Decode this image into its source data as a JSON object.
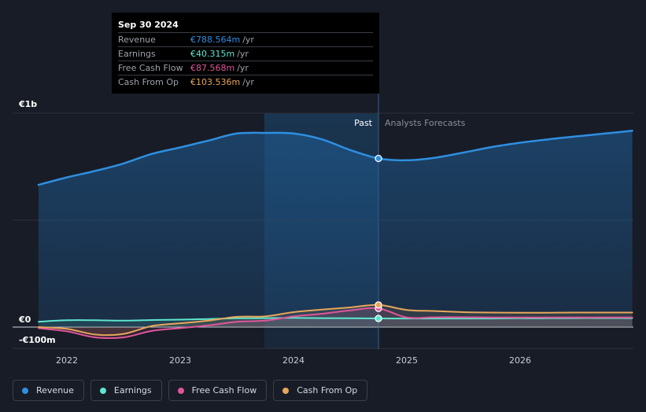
{
  "tooltip": {
    "date": "Sep 30 2024",
    "rows": [
      {
        "label": "Revenue",
        "value": "€788.564m",
        "unit": "/yr",
        "color": "#2e8fe0"
      },
      {
        "label": "Earnings",
        "value": "€40.315m",
        "unit": "/yr",
        "color": "#5ee6cf"
      },
      {
        "label": "Free Cash Flow",
        "value": "€87.568m",
        "unit": "/yr",
        "color": "#e0559a"
      },
      {
        "label": "Cash From Op",
        "value": "€103.536m",
        "unit": "/yr",
        "color": "#e8a65a"
      }
    ]
  },
  "legend": [
    {
      "label": "Revenue",
      "color": "#2e8fe0"
    },
    {
      "label": "Earnings",
      "color": "#5ee6cf"
    },
    {
      "label": "Free Cash Flow",
      "color": "#e0559a"
    },
    {
      "label": "Cash From Op",
      "color": "#e8a65a"
    }
  ],
  "chart_data": {
    "type": "line",
    "title": "",
    "xlabel": "",
    "ylabel": "",
    "y_tick_labels": [
      "€1b",
      "€0",
      "-€100m"
    ],
    "x_tick_labels": [
      "2022",
      "2023",
      "2024",
      "2025",
      "2026"
    ],
    "xlim": [
      2021.75,
      2026.99
    ],
    "ylim": [
      -100,
      1000
    ],
    "divider_x": 2024.75,
    "past_label": "Past",
    "forecast_label": "Analysts Forecasts",
    "series": [
      {
        "name": "Revenue",
        "color": "#2e8fe0",
        "points": [
          [
            2021.75,
            665
          ],
          [
            2022.0,
            700
          ],
          [
            2022.25,
            730
          ],
          [
            2022.5,
            765
          ],
          [
            2022.75,
            810
          ],
          [
            2023.0,
            840
          ],
          [
            2023.25,
            872
          ],
          [
            2023.5,
            905
          ],
          [
            2023.75,
            908
          ],
          [
            2024.0,
            905
          ],
          [
            2024.25,
            878
          ],
          [
            2024.5,
            828
          ],
          [
            2024.75,
            788.564
          ],
          [
            2025.0,
            780
          ],
          [
            2025.25,
            792
          ],
          [
            2025.5,
            816
          ],
          [
            2025.75,
            842
          ],
          [
            2026.0,
            862
          ],
          [
            2026.25,
            878
          ],
          [
            2026.5,
            892
          ],
          [
            2026.75,
            905
          ],
          [
            2026.99,
            918
          ]
        ]
      },
      {
        "name": "Earnings",
        "color": "#5ee6cf",
        "points": [
          [
            2021.75,
            25
          ],
          [
            2022.0,
            32
          ],
          [
            2022.25,
            32
          ],
          [
            2022.5,
            30
          ],
          [
            2022.75,
            33
          ],
          [
            2023.0,
            35
          ],
          [
            2023.25,
            38
          ],
          [
            2023.5,
            41
          ],
          [
            2023.75,
            42
          ],
          [
            2024.0,
            43
          ],
          [
            2024.25,
            42
          ],
          [
            2024.5,
            41
          ],
          [
            2024.75,
            40.315
          ],
          [
            2025.0,
            40
          ],
          [
            2025.25,
            40
          ],
          [
            2025.5,
            40
          ],
          [
            2025.75,
            40
          ],
          [
            2026.0,
            41
          ],
          [
            2026.25,
            41
          ],
          [
            2026.5,
            42
          ],
          [
            2026.75,
            42
          ],
          [
            2026.99,
            42
          ]
        ]
      },
      {
        "name": "Free Cash Flow",
        "color": "#e0559a",
        "points": [
          [
            2021.75,
            -5
          ],
          [
            2022.0,
            -20
          ],
          [
            2022.25,
            -48
          ],
          [
            2022.5,
            -48
          ],
          [
            2022.75,
            -18
          ],
          [
            2023.0,
            -5
          ],
          [
            2023.25,
            8
          ],
          [
            2023.5,
            25
          ],
          [
            2023.75,
            30
          ],
          [
            2024.0,
            50
          ],
          [
            2024.25,
            62
          ],
          [
            2024.5,
            78
          ],
          [
            2024.75,
            87.568
          ],
          [
            2025.0,
            45
          ],
          [
            2025.25,
            46
          ],
          [
            2025.5,
            46
          ],
          [
            2025.75,
            45
          ],
          [
            2026.0,
            45
          ],
          [
            2026.25,
            45
          ],
          [
            2026.5,
            45
          ],
          [
            2026.75,
            45
          ],
          [
            2026.99,
            45
          ]
        ]
      },
      {
        "name": "Cash From Op",
        "color": "#e8a65a",
        "points": [
          [
            2021.75,
            0
          ],
          [
            2022.0,
            -8
          ],
          [
            2022.25,
            -35
          ],
          [
            2022.5,
            -32
          ],
          [
            2022.75,
            5
          ],
          [
            2023.0,
            18
          ],
          [
            2023.25,
            30
          ],
          [
            2023.5,
            48
          ],
          [
            2023.75,
            50
          ],
          [
            2024.0,
            70
          ],
          [
            2024.25,
            82
          ],
          [
            2024.5,
            92
          ],
          [
            2024.75,
            103.536
          ],
          [
            2025.0,
            80
          ],
          [
            2025.25,
            75
          ],
          [
            2025.5,
            70
          ],
          [
            2025.75,
            68
          ],
          [
            2026.0,
            67
          ],
          [
            2026.25,
            67
          ],
          [
            2026.5,
            68
          ],
          [
            2026.75,
            68
          ],
          [
            2026.99,
            68
          ]
        ]
      }
    ]
  }
}
